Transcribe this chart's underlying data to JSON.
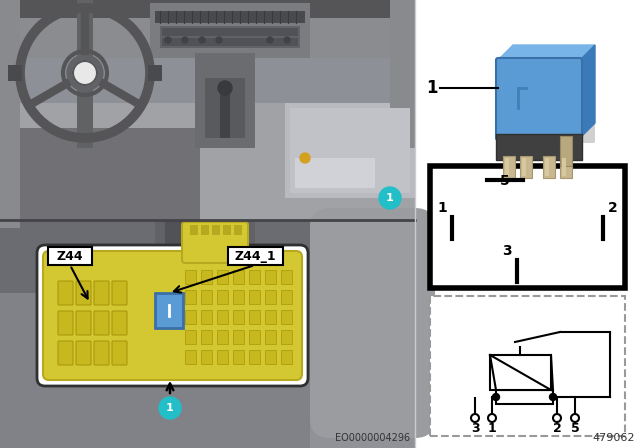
{
  "fig_width": 6.4,
  "fig_height": 4.48,
  "dpi": 100,
  "bg_color": "#ffffff",
  "yellow_color": "#d4c832",
  "yellow_edge": "#b8a820",
  "blue_relay_color": "#5b9bd5",
  "blue_relay_dark": "#3a6fa8",
  "cyan_color": "#22bfc8",
  "label_z44": "Z44",
  "label_z44_1": "Z44_1",
  "footnote_left": "EO0000004296",
  "footnote_right": "479062",
  "top_photo_bg": "#a8a8aa",
  "top_dash_bg": "#888890",
  "bottom_photo_bg": "#6a6a70",
  "bottom_mech_bg": "#787880",
  "sep_line_color": "#444448",
  "right_bg": "#f0f0f0",
  "term_box_border": "#111111",
  "sch_box_border": "#888888"
}
